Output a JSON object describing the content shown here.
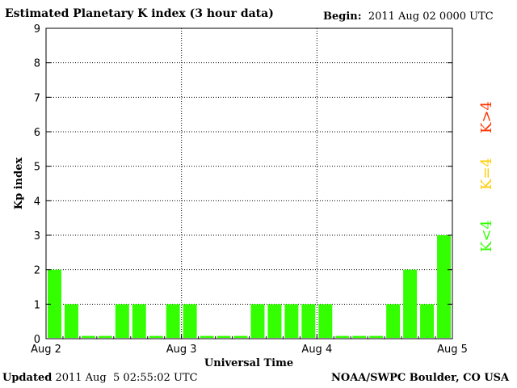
{
  "header": {
    "title": "Estimated Planetary K index (3 hour data)",
    "begin_label": "Begin:",
    "begin_value": "2011 Aug 02 0000 UTC"
  },
  "footer": {
    "updated_label": "Updated",
    "updated_value": "2011 Aug  5 02:55:02 UTC",
    "credit": "NOAA/SWPC Boulder, CO USA"
  },
  "legend": [
    {
      "label": "K>4",
      "color": "#ff3300"
    },
    {
      "label": "K=4",
      "color": "#ffcc00"
    },
    {
      "label": "K<4",
      "color": "#33ff00"
    }
  ],
  "chart_data": {
    "type": "bar",
    "title": "Estimated Planetary K index (3 hour data)",
    "xlabel": "Universal Time",
    "ylabel": "Kp index",
    "ylim": [
      0,
      9
    ],
    "yticks": [
      0,
      1,
      2,
      3,
      4,
      5,
      6,
      7,
      8,
      9
    ],
    "x_tick_labels": [
      "Aug 2",
      "Aug 3",
      "Aug 4",
      "Aug 5"
    ],
    "interval_hours": 3,
    "grid": true,
    "bar_color": "#33ff00",
    "values": [
      2,
      1,
      0,
      0,
      1,
      1,
      0,
      1,
      1,
      0,
      0,
      0,
      1,
      1,
      1,
      1,
      1,
      0,
      0,
      0,
      1,
      2,
      1,
      3
    ]
  }
}
